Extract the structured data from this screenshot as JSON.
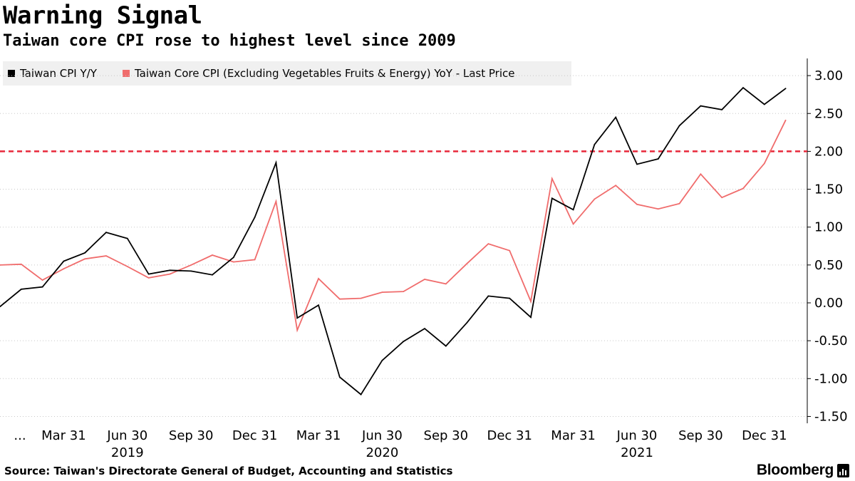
{
  "header": {
    "title": "Warning Signal",
    "subtitle": "Taiwan core CPI rose to highest level since 2009"
  },
  "footer": {
    "source": "Source: Taiwan's Directorate General of Budget, Accounting and Statistics",
    "brand": "Bloomberg"
  },
  "chart_data": {
    "type": "line",
    "title": "Warning Signal",
    "subtitle": "Taiwan core CPI rose to highest level since 2009",
    "x": [
      "2018-12",
      "2019-01",
      "2019-02",
      "2019-03",
      "2019-04",
      "2019-05",
      "2019-06",
      "2019-07",
      "2019-08",
      "2019-09",
      "2019-10",
      "2019-11",
      "2019-12",
      "2020-01",
      "2020-02",
      "2020-03",
      "2020-04",
      "2020-05",
      "2020-06",
      "2020-07",
      "2020-08",
      "2020-09",
      "2020-10",
      "2020-11",
      "2020-12",
      "2021-01",
      "2021-02",
      "2021-03",
      "2021-04",
      "2021-05",
      "2021-06",
      "2021-07",
      "2021-08",
      "2021-09",
      "2021-10",
      "2021-11",
      "2021-12",
      "2022-01"
    ],
    "series": [
      {
        "name": "Taiwan CPI Y/Y",
        "color": "#000000",
        "values": [
          -0.05,
          0.18,
          0.21,
          0.55,
          0.66,
          0.93,
          0.85,
          0.38,
          0.43,
          0.42,
          0.37,
          0.6,
          1.13,
          1.85,
          -0.2,
          -0.03,
          -0.98,
          -1.21,
          -0.76,
          -0.51,
          -0.34,
          -0.57,
          -0.26,
          0.09,
          0.06,
          -0.19,
          1.38,
          1.23,
          2.09,
          2.45,
          1.83,
          1.9,
          2.34,
          2.6,
          2.55,
          2.84,
          2.62,
          2.83
        ]
      },
      {
        "name": "Taiwan Core CPI (Excluding Vegetables Fruits & Energy) YoY - Last Price",
        "color": "#f06c6c",
        "values": [
          0.5,
          0.51,
          0.3,
          0.45,
          0.58,
          0.62,
          0.48,
          0.33,
          0.38,
          0.5,
          0.63,
          0.54,
          0.57,
          1.34,
          -0.36,
          0.32,
          0.05,
          0.06,
          0.14,
          0.15,
          0.31,
          0.25,
          0.52,
          0.78,
          0.69,
          0.02,
          1.64,
          1.04,
          1.37,
          1.55,
          1.3,
          1.24,
          1.31,
          1.7,
          1.39,
          1.51,
          1.84,
          2.41
        ]
      }
    ],
    "reference_line": {
      "value": 2.0,
      "color": "#e8283a",
      "style": "dashed"
    },
    "y_ticks": [
      3.0,
      2.5,
      2.0,
      1.5,
      1.0,
      0.5,
      0.0,
      -0.5,
      -1.0,
      -1.5
    ],
    "y_tick_labels": [
      "3.00",
      "2.50",
      "2.00",
      "1.50",
      "1.00",
      "0.50",
      "0.00",
      "-0.50",
      "-1.00",
      "-1.50"
    ],
    "ylim": [
      -1.55,
      3.2
    ],
    "x_ticks": [
      {
        "label": "...",
        "index": 0
      },
      {
        "label": "Mar 31",
        "index": 3
      },
      {
        "label": "Jun 30",
        "index": 6
      },
      {
        "label": "Sep 30",
        "index": 9
      },
      {
        "label": "Dec 31",
        "index": 12
      },
      {
        "label": "Mar 31",
        "index": 15
      },
      {
        "label": "Jun 30",
        "index": 18
      },
      {
        "label": "Sep 30",
        "index": 21
      },
      {
        "label": "Dec 31",
        "index": 24
      },
      {
        "label": "Mar 31",
        "index": 27
      },
      {
        "label": "Jun 30",
        "index": 30
      },
      {
        "label": "Sep 30",
        "index": 33
      },
      {
        "label": "Dec 31",
        "index": 36
      }
    ],
    "year_labels": [
      {
        "label": "2019",
        "index": 6
      },
      {
        "label": "2020",
        "index": 18
      },
      {
        "label": "2021",
        "index": 30
      }
    ],
    "legend_position": "top-left",
    "ylabel_position": "right",
    "grid": "horizontal-dotted"
  }
}
